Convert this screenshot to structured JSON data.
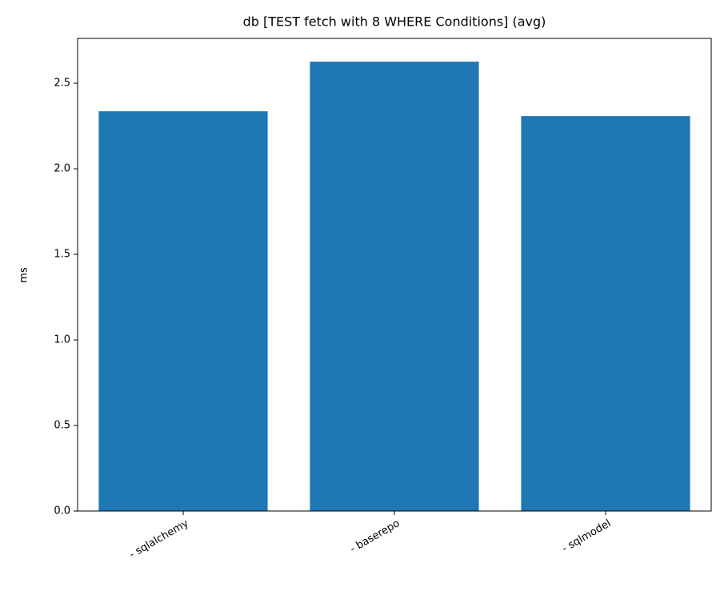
{
  "chart_data": {
    "type": "bar",
    "title": "db [TEST fetch with 8 WHERE Conditions] (avg)",
    "y_label": "ms",
    "categories": [
      "- sqlalchemy",
      "- baserepo",
      "- sqlmodel"
    ],
    "values": [
      2.336,
      2.626,
      2.308
    ],
    "color": "#1f77b4",
    "ylim": [
      0,
      2.762
    ],
    "yticks": [
      {
        "value": 0,
        "label": "0.0"
      },
      0.5,
      {
        "value": 1,
        "label": "1.0"
      },
      1.5,
      {
        "value": 2,
        "label": "2.0"
      },
      2.5
    ],
    "grid": false
  }
}
